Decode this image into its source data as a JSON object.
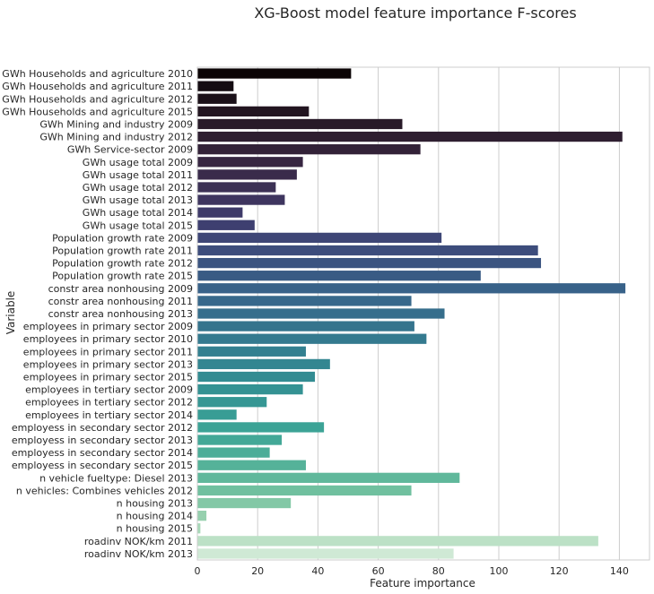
{
  "chart_data": {
    "type": "bar",
    "orientation": "horizontal",
    "title": "XG-Boost model feature importance F-scores",
    "xlabel": "Feature importance",
    "ylabel": "Variable",
    "xlim": [
      0,
      150
    ],
    "xticks": [
      0,
      20,
      40,
      60,
      80,
      100,
      120,
      140
    ],
    "grid": true,
    "palette": "mako",
    "categories": [
      "GWh Households and agriculture 2010",
      "GWh Households and agriculture 2011",
      "GWh Households and agriculture 2012",
      "GWh Households and agriculture 2015",
      "GWh Mining and industry 2009",
      "GWh Mining and industry 2012",
      "GWh Service-sector 2009",
      "GWh usage total 2009",
      "GWh usage total 2011",
      "GWh usage total 2012",
      "GWh usage total 2013",
      "GWh usage total 2014",
      "GWh usage total 2015",
      "Population growth rate 2009",
      "Population growth rate 2011",
      "Population growth rate 2012",
      "Population growth rate 2015",
      "constr area nonhousing 2009",
      "constr area nonhousing 2011",
      "constr area nonhousing 2013",
      "employees in primary sector 2009",
      "employees in primary sector 2010",
      "employees in primary sector 2011",
      "employees in primary sector 2013",
      "employees in primary sector 2015",
      "employees in tertiary sector  2009",
      "employees in tertiary sector  2012",
      "employees in tertiary sector  2014",
      "employess in secondary sector 2012",
      "employess in secondary sector 2013",
      "employess in secondary sector 2014",
      "employess in secondary sector 2015",
      "n vehicle fueltype: Diesel 2013",
      "n vehicles: Combines vehicles 2012",
      "n housing 2013",
      "n housing 2014",
      "n housing 2015",
      "roadinv NOK/km 2011",
      "roadinv NOK/km 2013"
    ],
    "values": [
      51,
      12,
      13,
      37,
      68,
      141,
      74,
      35,
      33,
      26,
      29,
      15,
      19,
      81,
      113,
      114,
      94,
      142,
      71,
      82,
      72,
      76,
      36,
      44,
      39,
      35,
      23,
      13,
      42,
      28,
      24,
      36,
      87,
      71,
      31,
      3,
      1,
      133,
      85
    ],
    "colors": [
      "#0b0405",
      "#140c12",
      "#1b1119",
      "#221520",
      "#281a28",
      "#2e1e30",
      "#332238",
      "#372641",
      "#3a2b4b",
      "#3c3155",
      "#3e355f",
      "#3e3a69",
      "#3e3f70",
      "#3e4676",
      "#3d4d7c",
      "#3b5480",
      "#395b84",
      "#386289",
      "#37688b",
      "#366e8c",
      "#35748d",
      "#347a8f",
      "#338090",
      "#338691",
      "#338c92",
      "#349293",
      "#369794",
      "#389d95",
      "#3ca396",
      "#43a897",
      "#4bad98",
      "#55b299",
      "#60b89b",
      "#70c09f",
      "#83c8a6",
      "#96d0ae",
      "#a8d9b8",
      "#bce1c6",
      "#cfe9d5"
    ]
  }
}
